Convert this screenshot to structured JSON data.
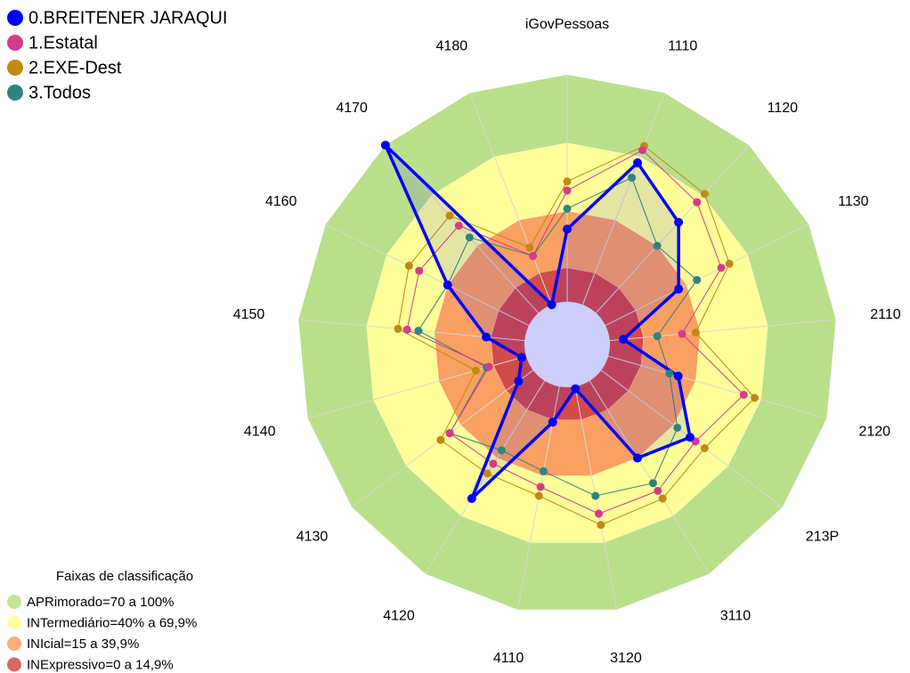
{
  "chart_data": {
    "type": "radar",
    "categories": [
      "iGovPessoas",
      "1110",
      "1120",
      "1130",
      "2110",
      "2120",
      "213P",
      "3110",
      "3120",
      "4110",
      "4120",
      "4130",
      "4140",
      "4150",
      "4160",
      "4170",
      "4180"
    ],
    "rlim": [
      0,
      100
    ],
    "series": [
      {
        "name": "0.BREITENER JARAQUI",
        "color": "#0000ff",
        "values": [
          32,
          67,
          54,
          36,
          6,
          32,
          49,
          40,
          1,
          16,
          61,
          8,
          2,
          17,
          40,
          100,
          0
        ]
      },
      {
        "name": "1.Estatal",
        "color": "#d63a8a",
        "values": [
          49,
          73,
          66,
          57,
          32,
          62,
          52,
          57,
          57,
          45,
          43,
          46,
          17,
          52,
          54,
          52,
          23
        ]
      },
      {
        "name": "2.EXE-Dest",
        "color": "#c08a12",
        "values": [
          53,
          75,
          71,
          61,
          38,
          67,
          57,
          61,
          62,
          49,
          48,
          51,
          23,
          56,
          59,
          58,
          27
        ]
      },
      {
        "name": "3.Todos",
        "color": "#2e8580",
        "values": [
          41,
          60,
          40,
          45,
          21,
          28,
          42,
          53,
          49,
          38,
          36,
          46,
          18,
          47,
          40,
          45,
          23
        ]
      }
    ],
    "bands_title": "Faixas de classificação",
    "bands": [
      {
        "label": "APRimorado=70 a 100%",
        "from": 70,
        "to": 100,
        "color": "#b9e08a"
      },
      {
        "label": "INTermediário=40% a 69,9%",
        "from": 40,
        "to": 69.9,
        "color": "#ffff99"
      },
      {
        "label": "INIcial=15 a 39,9%",
        "from": 15,
        "to": 39.9,
        "color": "#f9a062"
      },
      {
        "label": "INExpressivo=0 a 14,9%",
        "from": 0,
        "to": 14.9,
        "color": "#d24a4a"
      }
    ]
  }
}
